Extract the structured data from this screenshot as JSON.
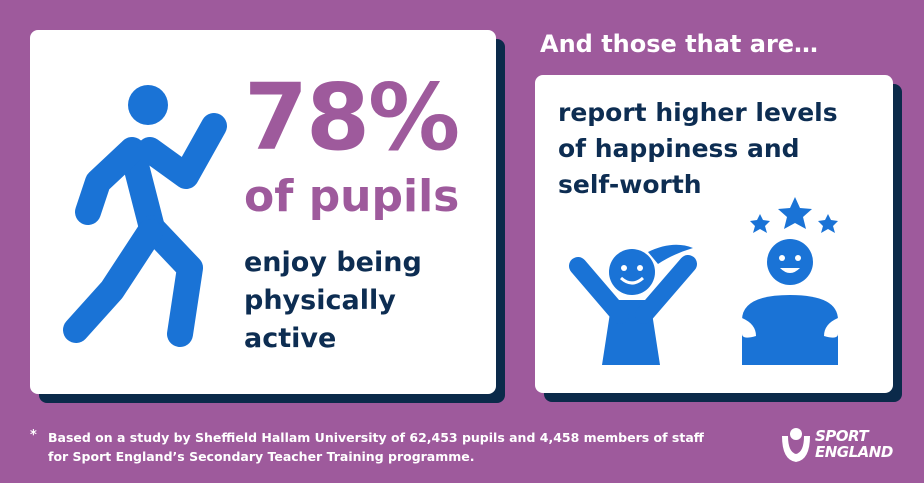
{
  "left_card": {
    "stat": "78%",
    "subject": "of pupils",
    "lines": [
      "enjoy being",
      "physically",
      "active"
    ]
  },
  "right_heading": "And those that are…",
  "right_card": {
    "lines": [
      "report higher levels",
      "of happiness and",
      "self-worth"
    ]
  },
  "footnote": {
    "marker": "*",
    "lines": [
      "Based on a study by Sheffield Hallam University of 62,453 pupils and 4,458 members of staff",
      "for Sport England’s Secondary Teacher Training programme."
    ]
  },
  "logo": {
    "lines": [
      "SPORT",
      "ENGLAND"
    ]
  }
}
